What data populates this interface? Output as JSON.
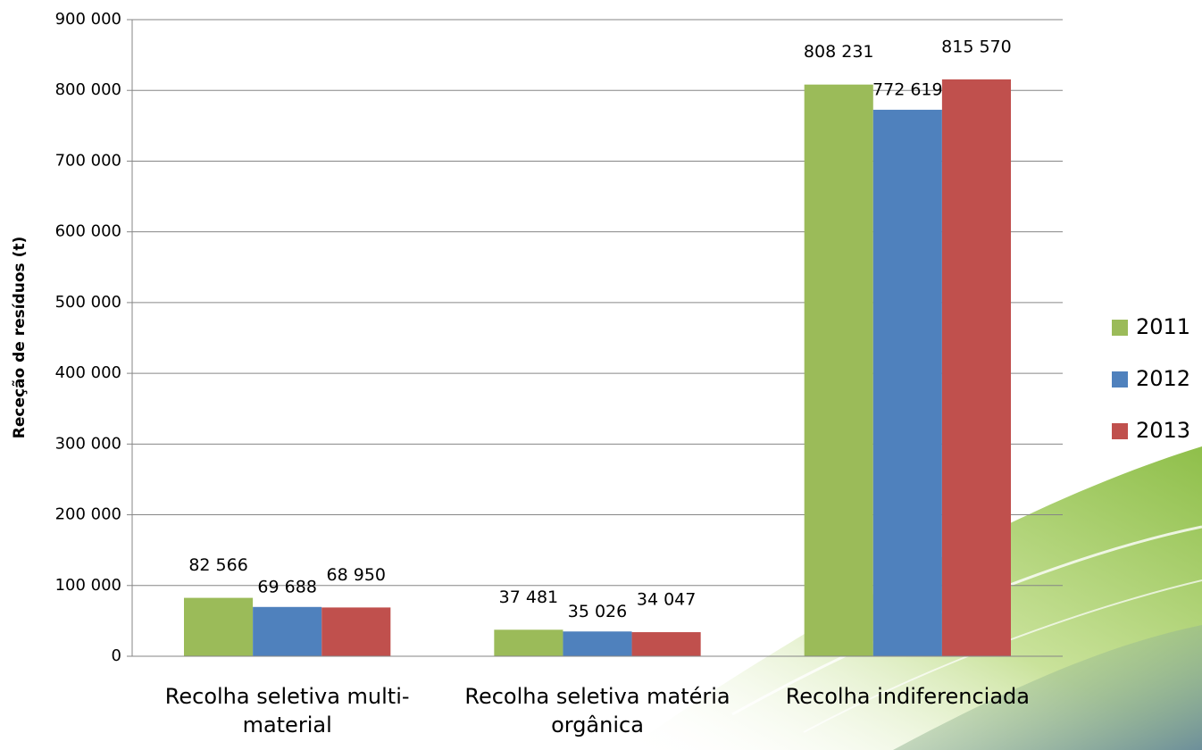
{
  "chart_data": {
    "type": "bar",
    "y_label": "Receção de resíduos (t)",
    "categories": [
      "Recolha seletiva multi-material",
      "Recolha seletiva matéria orgânica",
      "Recolha indiferenciada"
    ],
    "series": [
      {
        "name": "2011",
        "color": "#9bbb59",
        "values": [
          82566,
          37481,
          808231
        ],
        "value_labels": [
          "82 566",
          "37 481",
          "808 231"
        ]
      },
      {
        "name": "2012",
        "color": "#4f81bd",
        "values": [
          69688,
          35026,
          772619
        ],
        "value_labels": [
          "69 688",
          "35 026",
          "772 619"
        ]
      },
      {
        "name": "2013",
        "color": "#c0504d",
        "values": [
          68950,
          34047,
          815570
        ],
        "value_labels": [
          "68 950",
          "34 047",
          "815 570"
        ]
      }
    ],
    "ylim": [
      0,
      900000
    ],
    "yticks": [
      0,
      {
        "value": 100000,
        "label": "100 000"
      },
      {
        "value": 200000,
        "label": "200 000"
      },
      {
        "value": 300000,
        "label": "300 000"
      },
      {
        "value": 400000,
        "label": "400 000"
      },
      {
        "value": 500000,
        "label": "500 000"
      },
      {
        "value": 600000,
        "label": "600 000"
      },
      {
        "value": 700000,
        "label": "700 000"
      },
      {
        "value": 800000,
        "label": "800 000"
      },
      {
        "value": 900000,
        "label": "900 000"
      }
    ],
    "grid": true,
    "legend": "right"
  }
}
